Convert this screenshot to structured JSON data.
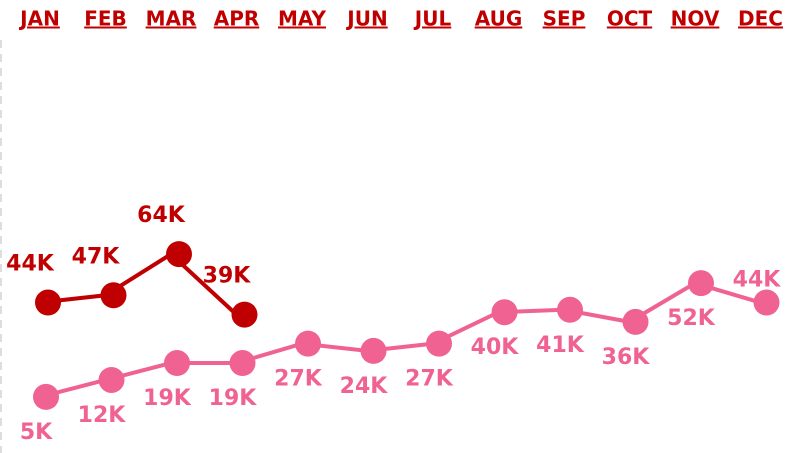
{
  "chart_data": {
    "type": "line",
    "categories": [
      "JAN",
      "FEB",
      "MAR",
      "APR",
      "MAY",
      "JUN",
      "JUL",
      "AUG",
      "SEP",
      "OCT",
      "NOV",
      "DEC"
    ],
    "series": [
      {
        "color": "#c00000",
        "values": [
          44000,
          47000,
          64000,
          39000,
          null,
          null,
          null,
          null,
          null,
          null,
          null,
          null
        ],
        "value_labels": [
          "44K",
          "47K",
          "64K",
          "39K",
          null,
          null,
          null,
          null,
          null,
          null,
          null,
          null
        ]
      },
      {
        "color": "#f06292",
        "values": [
          5000,
          12000,
          19000,
          19000,
          27000,
          24000,
          27000,
          40000,
          41000,
          36000,
          52000,
          44000
        ],
        "value_labels": [
          "5K",
          "12K",
          "19K",
          "19K",
          "27K",
          "24K",
          "27K",
          "40K",
          "41K",
          "36K",
          "52K",
          "44K"
        ]
      }
    ],
    "ylim": [
      0,
      100000
    ]
  }
}
